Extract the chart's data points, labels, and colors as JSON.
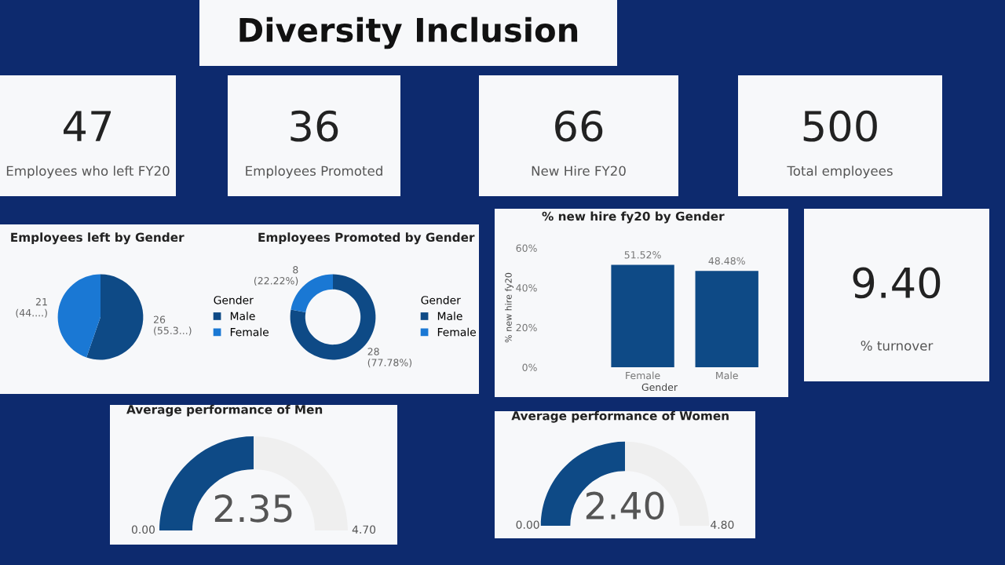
{
  "chart_data": [
    {
      "type": "other",
      "title": "Diversity Inclusion"
    },
    {
      "type": "other",
      "annotations": [
        "47",
        "Employees who left FY20"
      ]
    },
    {
      "type": "other",
      "annotations": [
        "36",
        "Employees Promoted"
      ]
    },
    {
      "type": "other",
      "annotations": [
        "66",
        "New Hire FY20"
      ]
    },
    {
      "type": "other",
      "annotations": [
        "500",
        "Total employees"
      ]
    },
    {
      "type": "pie",
      "title": "Employees left by Gender",
      "legend_title": "Gender",
      "legend": "right",
      "categories": [
        "Male",
        "Female"
      ],
      "values": [
        26,
        21
      ],
      "colors": [
        "#0e4a86",
        "#1a78d4"
      ],
      "value_labels": [
        "26\n(55.3...)",
        "21\n(44....)"
      ]
    },
    {
      "type": "donut",
      "title": "Employees Promoted by Gender",
      "legend_title": "Gender",
      "legend": "right",
      "categories": [
        "Male",
        "Female"
      ],
      "values": [
        28,
        8
      ],
      "colors": [
        "#0e4a86",
        "#1a78d4"
      ],
      "value_labels": [
        "28\n(77.78%)",
        "8\n(22.22%)"
      ]
    },
    {
      "type": "bar",
      "title": "% new hire fy20 by Gender",
      "xlabel": "Gender",
      "ylabel": "% new hire fy20",
      "categories": [
        "Female",
        "Male"
      ],
      "values": [
        51.52,
        48.48
      ],
      "color": "#0e4a86",
      "ylim": [
        0,
        60
      ],
      "yticks": [
        {
          "value": 0,
          "label": "0%"
        },
        {
          "value": 20,
          "label": "20%"
        },
        {
          "value": 40,
          "label": "40%"
        },
        {
          "value": 60,
          "label": "60%"
        }
      ],
      "value_labels": [
        "51.52%",
        "48.48%"
      ]
    },
    {
      "type": "other",
      "annotations": [
        "9.40",
        "% turnover"
      ]
    },
    {
      "type": "donut",
      "title": "Average performance of Men",
      "categories": [
        null,
        null
      ],
      "values": [
        50,
        50
      ],
      "colors": [
        "#0e4a86",
        "#efefef"
      ],
      "annotations": [
        "2.35",
        "0.00",
        "4.70"
      ]
    },
    {
      "type": "donut",
      "title": "Average performance of Women",
      "categories": [
        null,
        null
      ],
      "values": [
        50,
        50
      ],
      "colors": [
        "#0e4a86",
        "#efefef"
      ],
      "annotations": [
        "2.40",
        "0.00",
        "4.80"
      ]
    }
  ]
}
